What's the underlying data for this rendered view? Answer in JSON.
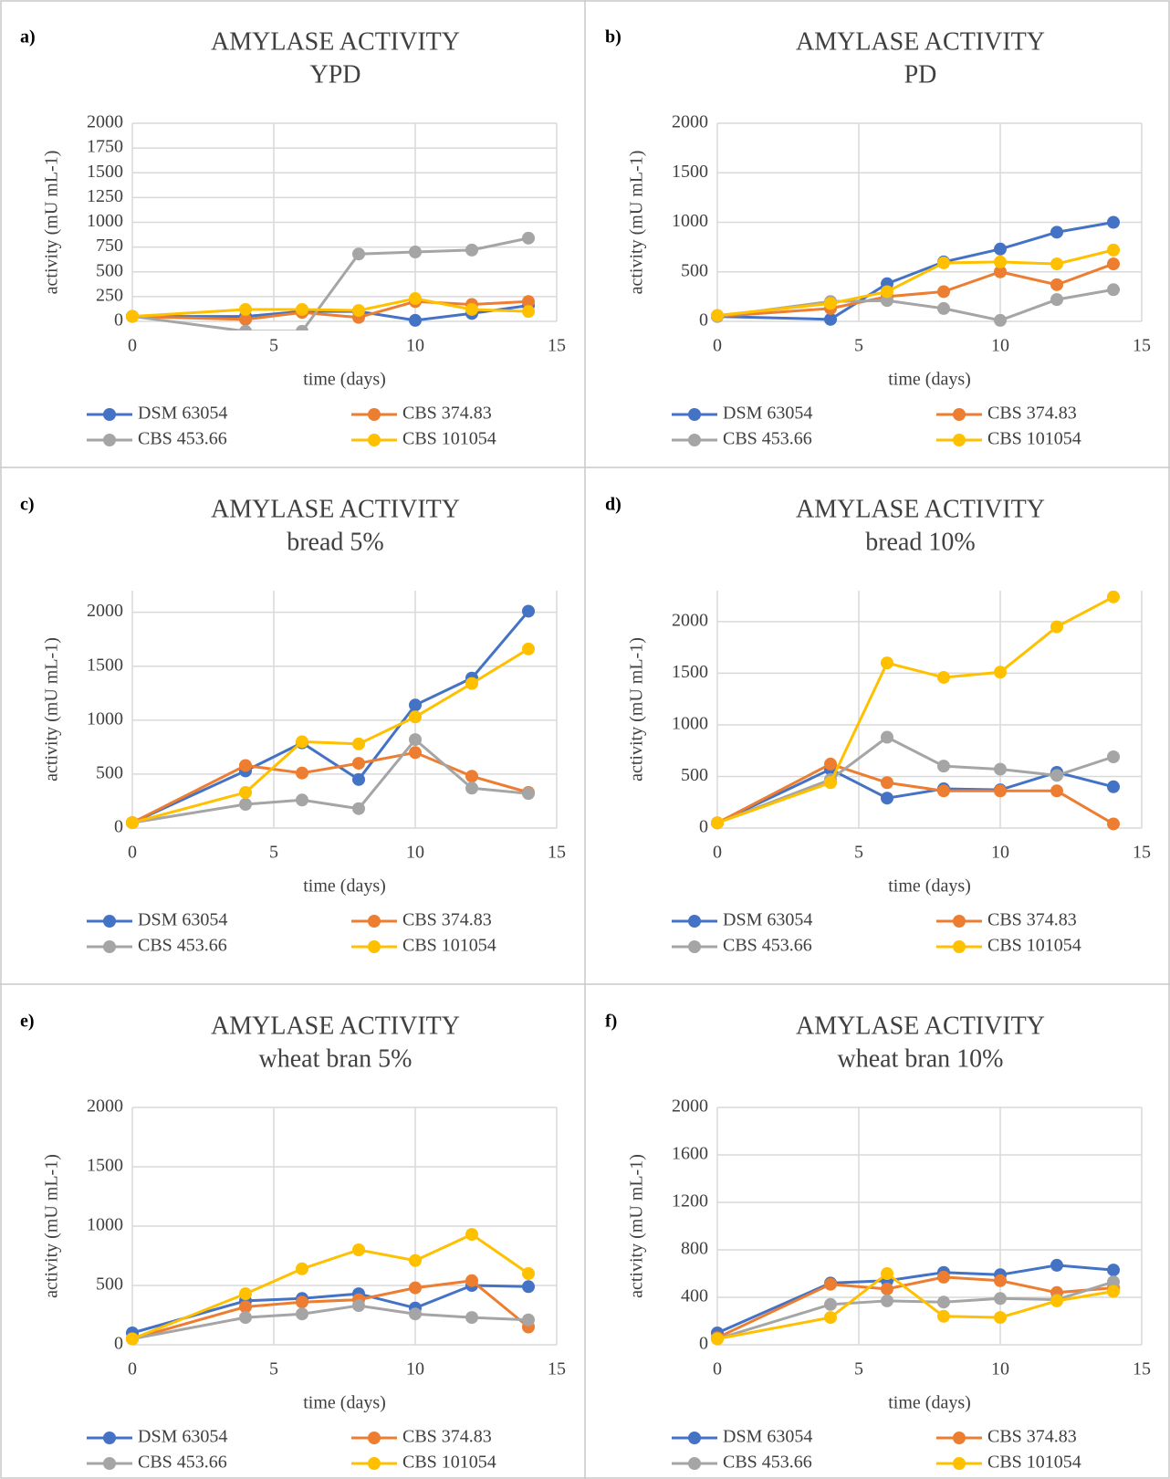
{
  "chart_data": [
    {
      "type": "line",
      "label": "a)",
      "title": "AMYLASE ACTIVITY",
      "subtitle": "YPD",
      "x_label": "time (days)",
      "y_label": "activity (mU mL-1)",
      "x": [
        0,
        4,
        6,
        8,
        10,
        12,
        14
      ],
      "xlim": [
        0,
        15
      ],
      "xticks": [
        0,
        5,
        10,
        15
      ],
      "ylim": [
        0,
        2000
      ],
      "yticks": [
        0,
        250,
        500,
        750,
        1000,
        1250,
        1500,
        1750,
        2000
      ],
      "grid": true,
      "legend": "bottom",
      "series": [
        {
          "name": "DSM 63054",
          "color": "#4472c4",
          "values": [
            50,
            50,
            100,
            100,
            10,
            80,
            160
          ]
        },
        {
          "name": "CBS 374.83",
          "color": "#ed7d31",
          "values": [
            50,
            20,
            90,
            40,
            200,
            170,
            200
          ]
        },
        {
          "name": "CBS 453.66",
          "color": "#a5a5a5",
          "values": [
            50,
            -100,
            -100,
            680,
            700,
            720,
            840
          ]
        },
        {
          "name": "CBS 101054",
          "color": "#ffc000",
          "values": [
            50,
            120,
            120,
            110,
            230,
            120,
            100
          ]
        }
      ]
    },
    {
      "type": "line",
      "label": "b)",
      "title": "AMYLASE ACTIVITY",
      "subtitle": "PD",
      "x_label": "time (days)",
      "y_label": "activity (mU mL-1)",
      "x": [
        0,
        4,
        6,
        8,
        10,
        12,
        14
      ],
      "xlim": [
        0,
        15
      ],
      "xticks": [
        0,
        5,
        10,
        15
      ],
      "ylim": [
        0,
        2000
      ],
      "yticks": [
        0,
        500,
        1000,
        1500,
        2000
      ],
      "grid": true,
      "legend": "bottom",
      "series": [
        {
          "name": "DSM 63054",
          "color": "#4472c4",
          "values": [
            50,
            20,
            380,
            600,
            730,
            900,
            1000
          ]
        },
        {
          "name": "CBS 374.83",
          "color": "#ed7d31",
          "values": [
            50,
            130,
            250,
            300,
            500,
            370,
            580
          ]
        },
        {
          "name": "CBS 453.66",
          "color": "#a5a5a5",
          "values": [
            50,
            200,
            210,
            130,
            10,
            220,
            320
          ]
        },
        {
          "name": "CBS 101054",
          "color": "#ffc000",
          "values": [
            60,
            180,
            300,
            590,
            600,
            580,
            720
          ]
        }
      ]
    },
    {
      "type": "line",
      "label": "c)",
      "title": "AMYLASE ACTIVITY",
      "subtitle": "bread 5%",
      "x_label": "time (days)",
      "y_label": "activity (mU mL-1)",
      "x": [
        0,
        4,
        6,
        8,
        10,
        12,
        14
      ],
      "xlim": [
        0,
        15
      ],
      "xticks": [
        0,
        5,
        10,
        15
      ],
      "ylim": [
        0,
        2200
      ],
      "yticks": [
        0,
        500,
        1000,
        1500,
        2000
      ],
      "grid": true,
      "legend": "bottom",
      "series": [
        {
          "name": "DSM 63054",
          "color": "#4472c4",
          "values": [
            50,
            530,
            790,
            450,
            1140,
            1390,
            2010
          ]
        },
        {
          "name": "CBS 374.83",
          "color": "#ed7d31",
          "values": [
            50,
            580,
            510,
            600,
            700,
            480,
            330
          ]
        },
        {
          "name": "CBS 453.66",
          "color": "#a5a5a5",
          "values": [
            50,
            220,
            260,
            180,
            820,
            370,
            320
          ]
        },
        {
          "name": "CBS 101054",
          "color": "#ffc000",
          "values": [
            50,
            330,
            800,
            780,
            1030,
            1340,
            1660
          ]
        }
      ]
    },
    {
      "type": "line",
      "label": "d)",
      "title": "AMYLASE ACTIVITY",
      "subtitle": "bread 10%",
      "x_label": "time (days)",
      "y_label": "activity (mU mL-1)",
      "x": [
        0,
        4,
        6,
        8,
        10,
        12,
        14
      ],
      "xlim": [
        0,
        15
      ],
      "xticks": [
        0,
        5,
        10,
        15
      ],
      "ylim": [
        0,
        2300
      ],
      "yticks": [
        0,
        500,
        1000,
        1500,
        2000
      ],
      "grid": true,
      "legend": "bottom",
      "series": [
        {
          "name": "DSM 63054",
          "color": "#4472c4",
          "values": [
            50,
            570,
            290,
            380,
            370,
            540,
            400
          ]
        },
        {
          "name": "CBS 374.83",
          "color": "#ed7d31",
          "values": [
            50,
            620,
            440,
            360,
            360,
            360,
            40
          ]
        },
        {
          "name": "CBS 453.66",
          "color": "#a5a5a5",
          "values": [
            50,
            470,
            880,
            600,
            570,
            510,
            690
          ]
        },
        {
          "name": "CBS 101054",
          "color": "#ffc000",
          "values": [
            50,
            440,
            1600,
            1460,
            1510,
            1950,
            2240
          ]
        }
      ]
    },
    {
      "type": "line",
      "label": "e)",
      "title": "AMYLASE ACTIVITY",
      "subtitle": "wheat bran 5%",
      "x_label": "time (days)",
      "y_label": "activity (mU mL-1)",
      "x": [
        0,
        4,
        6,
        8,
        10,
        12,
        14
      ],
      "xlim": [
        0,
        15
      ],
      "xticks": [
        0,
        5,
        10,
        15
      ],
      "ylim": [
        0,
        2000
      ],
      "yticks": [
        0,
        500,
        1000,
        1500,
        2000
      ],
      "grid": true,
      "legend": "bottom",
      "series": [
        {
          "name": "DSM 63054",
          "color": "#4472c4",
          "values": [
            100,
            370,
            390,
            430,
            310,
            500,
            490
          ]
        },
        {
          "name": "CBS 374.83",
          "color": "#ed7d31",
          "values": [
            50,
            320,
            360,
            380,
            480,
            540,
            150
          ]
        },
        {
          "name": "CBS 453.66",
          "color": "#a5a5a5",
          "values": [
            50,
            230,
            260,
            330,
            260,
            230,
            210
          ]
        },
        {
          "name": "CBS 101054",
          "color": "#ffc000",
          "values": [
            50,
            430,
            640,
            800,
            710,
            930,
            600
          ]
        }
      ]
    },
    {
      "type": "line",
      "label": "f)",
      "title": "AMYLASE ACTIVITY",
      "subtitle": "wheat bran 10%",
      "x_label": "time (days)",
      "y_label": "activity (mU mL-1)",
      "x": [
        0,
        4,
        6,
        8,
        10,
        12,
        14
      ],
      "xlim": [
        0,
        15
      ],
      "xticks": [
        0,
        5,
        10,
        15
      ],
      "ylim": [
        0,
        2000
      ],
      "yticks": [
        0,
        400,
        800,
        1200,
        1600,
        2000
      ],
      "grid": true,
      "legend": "bottom",
      "series": [
        {
          "name": "DSM 63054",
          "color": "#4472c4",
          "values": [
            100,
            520,
            540,
            610,
            590,
            670,
            630
          ]
        },
        {
          "name": "CBS 374.83",
          "color": "#ed7d31",
          "values": [
            60,
            510,
            470,
            570,
            540,
            440,
            480
          ]
        },
        {
          "name": "CBS 453.66",
          "color": "#a5a5a5",
          "values": [
            50,
            340,
            370,
            360,
            390,
            380,
            530
          ]
        },
        {
          "name": "CBS 101054",
          "color": "#ffc000",
          "values": [
            50,
            230,
            600,
            240,
            230,
            370,
            450
          ]
        }
      ]
    }
  ]
}
